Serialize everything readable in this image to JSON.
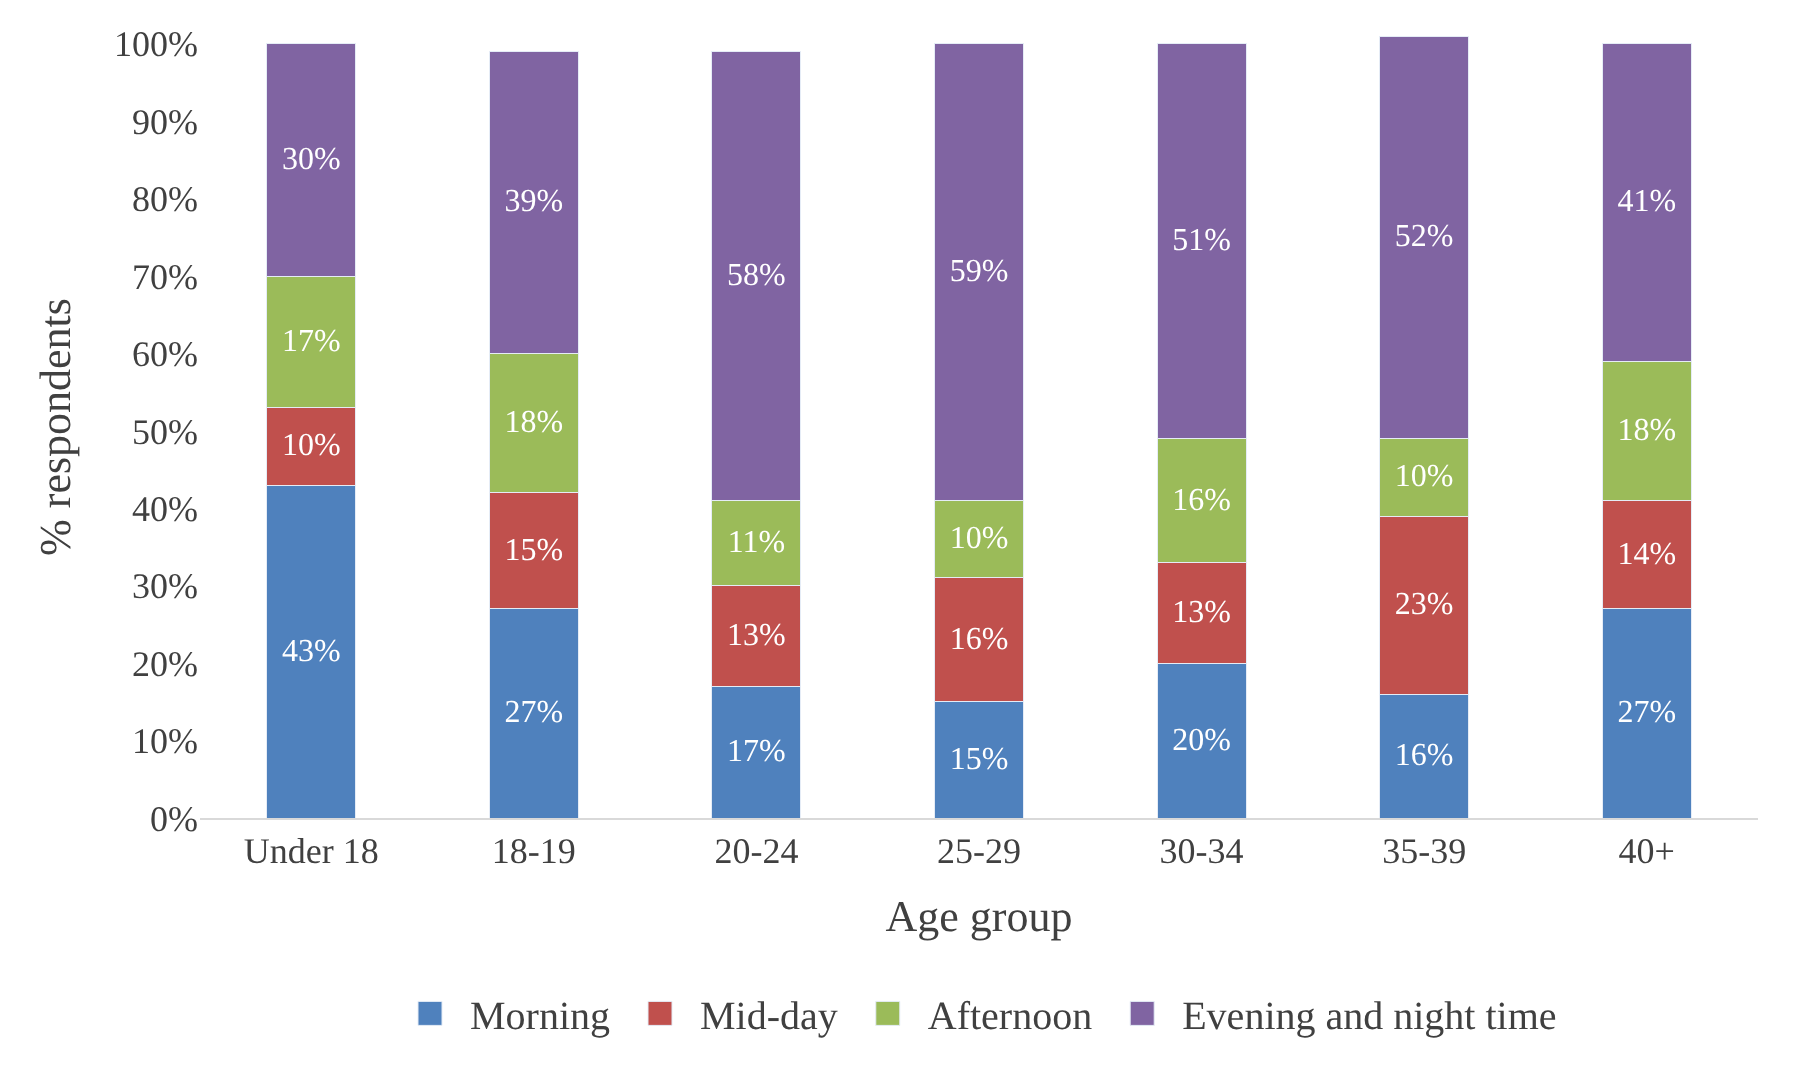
{
  "chart_data": {
    "type": "bar",
    "stacked": true,
    "xlabel": "Age group",
    "ylabel": "% respondents",
    "categories": [
      "Under 18",
      "18-19",
      "20-24",
      "25-29",
      "30-34",
      "35-39",
      "40+"
    ],
    "series": [
      {
        "name": "Morning",
        "color": "#4f81bd",
        "values": [
          43,
          27,
          17,
          15,
          20,
          16,
          27
        ],
        "value_labels": [
          "43%",
          "27%",
          "17%",
          "15%",
          "20%",
          "16%",
          "27%"
        ]
      },
      {
        "name": "Mid-day",
        "color": "#c0504d",
        "values": [
          10,
          15,
          13,
          16,
          13,
          23,
          14
        ],
        "value_labels": [
          "10%",
          "15%",
          "13%",
          "16%",
          "13%",
          "23%",
          "14%"
        ]
      },
      {
        "name": "Afternoon",
        "color": "#9bbb59",
        "values": [
          17,
          18,
          11,
          10,
          16,
          10,
          18
        ],
        "value_labels": [
          "17%",
          "18%",
          "11%",
          "10%",
          "16%",
          "10%",
          "18%"
        ]
      },
      {
        "name": "Evening and night time",
        "color": "#8064a2",
        "values": [
          30,
          39,
          58,
          59,
          51,
          52,
          41
        ],
        "value_labels": [
          "30%",
          "39%",
          "58%",
          "59%",
          "51%",
          "52%",
          "41%"
        ]
      }
    ],
    "ylim": [
      0,
      101
    ],
    "yticks": [
      {
        "value": 0,
        "label": "0%"
      },
      {
        "value": 10,
        "label": "10%"
      },
      {
        "value": 20,
        "label": "20%"
      },
      {
        "value": 30,
        "label": "30%"
      },
      {
        "value": 40,
        "label": "40%"
      },
      {
        "value": 50,
        "label": "50%"
      },
      {
        "value": 60,
        "label": "60%"
      },
      {
        "value": 70,
        "label": "70%"
      },
      {
        "value": 80,
        "label": "80%"
      },
      {
        "value": 90,
        "label": "90%"
      },
      {
        "value": 100,
        "label": "100%"
      }
    ],
    "legend": "bottom"
  }
}
